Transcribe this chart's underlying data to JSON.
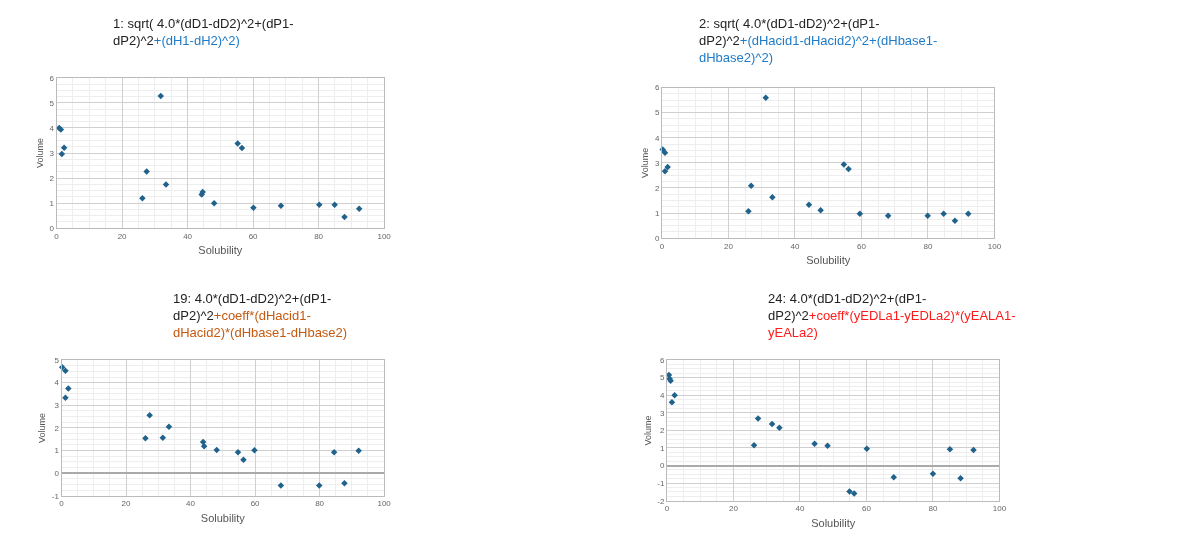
{
  "chart_data": [
    {
      "type": "scatter",
      "title": "1: sqrt( 4.0*(dD1-dD2)^2+(dP1-dP2)^2",
      "subtitle": "+(dH1-dH2)^2)",
      "xlabel": "Solubility",
      "ylabel": "Volume",
      "color": "#21628c",
      "marker": "diamond",
      "grid": true,
      "x": [
        0.8,
        1.3,
        1.6,
        2.3,
        31.8,
        27.5,
        26.2,
        33.4,
        44.3,
        44.6,
        48.1,
        55.3,
        56.6,
        60.1,
        68.5,
        80.2,
        84.9,
        87.9,
        92.4
      ],
      "values": [
        4.0,
        3.94,
        2.96,
        3.21,
        5.27,
        2.26,
        1.2,
        1.74,
        1.35,
        1.45,
        1.0,
        3.38,
        3.2,
        0.82,
        0.9,
        0.94,
        0.94,
        0.45,
        0.78
      ],
      "xlim": [
        0,
        100
      ],
      "xticks": [
        0,
        20,
        40,
        60,
        80,
        100
      ],
      "ylim": [
        0,
        6
      ],
      "yticks": [
        0,
        1,
        2,
        3,
        4,
        5,
        6
      ]
    },
    {
      "type": "scatter",
      "title": "2: sqrt( 4.0*(dD1-dD2)^2+(dP1-dP2)^2",
      "subtitle": "+(dHacid1-dHacid2)^2+(dHbase1-dHbase2)^2)",
      "xlabel": "Solubility",
      "ylabel": "Volume",
      "color": "#21628c",
      "marker": "diamond",
      "grid": true,
      "x": [
        0.2,
        0.9,
        0.9,
        1.7,
        31.2,
        26.0,
        26.8,
        33.2,
        44.2,
        47.7,
        54.7,
        56.1,
        59.5,
        68.0,
        79.9,
        84.7,
        88.1,
        92.1
      ],
      "values": [
        3.53,
        3.4,
        2.67,
        2.83,
        5.6,
        1.07,
        2.09,
        1.63,
        1.33,
        1.11,
        2.93,
        2.76,
        0.97,
        0.89,
        0.89,
        0.97,
        0.69,
        0.97
      ],
      "xlim": [
        0,
        100
      ],
      "xticks": [
        0,
        20,
        40,
        60,
        80,
        100
      ],
      "ylim": [
        0,
        6
      ],
      "yticks": [
        0,
        1,
        2,
        3,
        4,
        5,
        6
      ]
    },
    {
      "type": "scatter",
      "title": "19: 4.0*(dD1-dD2)^2+(dP1-dP2)^2",
      "subtitle": "+coeff*(dHacid1-dHacid2)*(dHbase1-dHbase2)",
      "xlabel": "Solubility",
      "ylabel": "Volume",
      "color": "#21628c",
      "marker": "diamond",
      "grid": true,
      "x": [
        0.2,
        1.2,
        1.2,
        2.1,
        27.3,
        26.0,
        31.4,
        33.3,
        43.9,
        44.2,
        48.1,
        54.7,
        56.4,
        59.8,
        68.0,
        79.9,
        84.5,
        87.7,
        92.1
      ],
      "values": [
        4.68,
        4.53,
        3.33,
        3.74,
        2.56,
        1.54,
        1.57,
        2.05,
        1.38,
        1.19,
        1.02,
        0.92,
        0.59,
        1.01,
        -0.54,
        -0.54,
        0.92,
        -0.44,
        0.99
      ],
      "xlim": [
        0,
        100
      ],
      "xticks": [
        0,
        20,
        40,
        60,
        80,
        100
      ],
      "ylim": [
        -1,
        5
      ],
      "yticks": [
        -1,
        0,
        1,
        2,
        3,
        4,
        5
      ]
    },
    {
      "type": "scatter",
      "title": "24: 4.0*(dD1-dD2)^2+(dP1-dP2)^2",
      "subtitle": "+coeff*(yEDLa1-yEDLa2)*(yEALA1-yEALa2)",
      "xlabel": "Solubility",
      "ylabel": "Volume",
      "color": "#21628c",
      "marker": "diamond",
      "grid": true,
      "x": [
        0.6,
        0.8,
        1.1,
        1.5,
        2.3,
        26.2,
        27.4,
        31.6,
        33.8,
        44.4,
        48.3,
        54.9,
        56.3,
        60.1,
        68.2,
        80.0,
        85.1,
        88.3,
        92.2
      ],
      "values": [
        5.15,
        4.94,
        4.83,
        3.6,
        4.0,
        1.16,
        2.68,
        2.36,
        2.15,
        1.24,
        1.12,
        -1.47,
        -1.59,
        0.96,
        -0.67,
        -0.46,
        0.93,
        -0.72,
        0.89
      ],
      "xlim": [
        0,
        100
      ],
      "xticks": [
        0,
        20,
        40,
        60,
        80,
        100
      ],
      "ylim": [
        -2,
        6
      ],
      "yticks": [
        -2,
        -1,
        0,
        1,
        2,
        3,
        4,
        5,
        6
      ]
    }
  ]
}
